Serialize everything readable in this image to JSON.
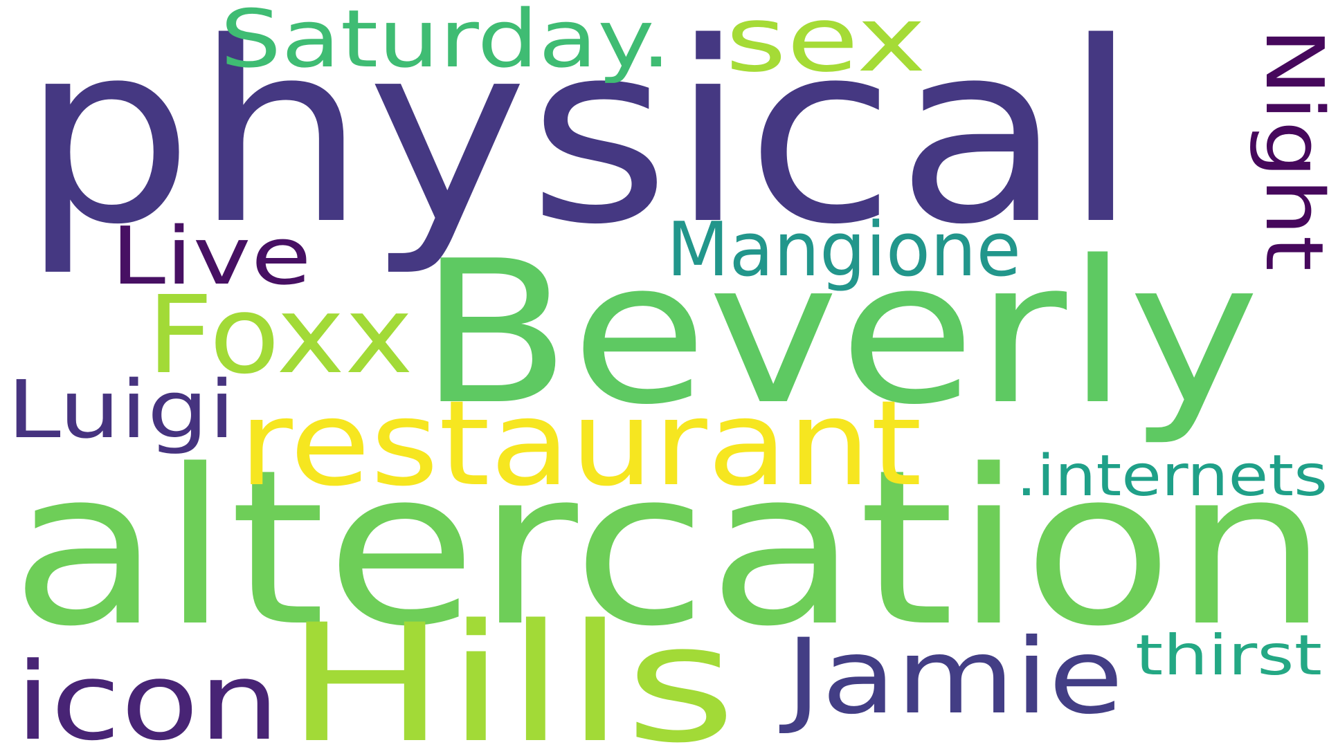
{
  "cloud": {
    "words": [
      {
        "text": "physical",
        "color": "#453882"
      },
      {
        "text": "Beverly",
        "color": "#5ec962"
      },
      {
        "text": "altercation",
        "color": "#6ece58"
      },
      {
        "text": "Hills",
        "color": "#a2da37"
      },
      {
        "text": "restaurant",
        "color": "#f6e620"
      },
      {
        "text": "Saturday.",
        "color": "#3fbc73"
      },
      {
        "text": "sex",
        "color": "#a5db36"
      },
      {
        "text": "Night",
        "color": "#46085c"
      },
      {
        "text": "Live",
        "color": "#471063"
      },
      {
        "text": "Mangione",
        "color": "#22968b"
      },
      {
        "text": "Foxx",
        "color": "#a2da37"
      },
      {
        "text": "Luigi",
        "color": "#46337f"
      },
      {
        "text": ".internets",
        "color": "#1fa088"
      },
      {
        "text": "icon",
        "color": "#482475"
      },
      {
        "text": "Jamie",
        "color": "#433e85"
      },
      {
        "text": "thirst",
        "color": "#24a884"
      }
    ]
  }
}
